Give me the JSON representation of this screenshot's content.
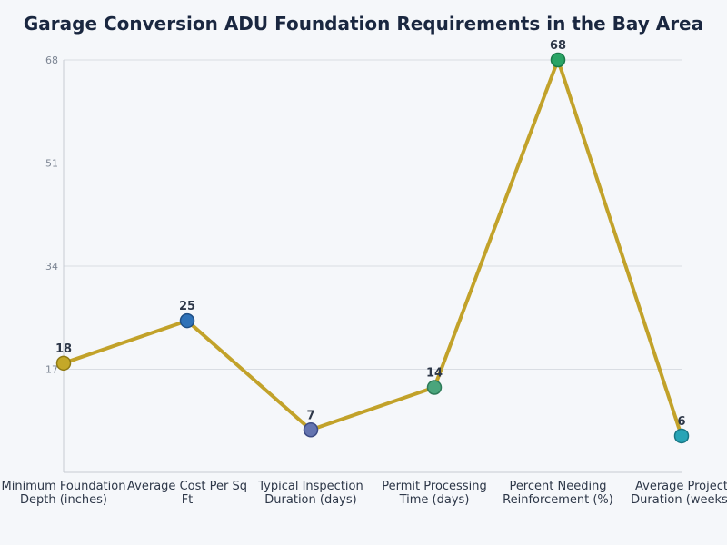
{
  "chart_data": {
    "type": "line",
    "title": "Garage Conversion ADU Foundation Requirements in the Bay Area",
    "categories": [
      [
        "Minimum Foundation",
        "Depth (inches)"
      ],
      [
        "Average Cost Per Sq",
        "Ft"
      ],
      [
        "Typical Inspection",
        "Duration (days)"
      ],
      [
        "Permit Processing",
        "Time (days)"
      ],
      [
        "Percent Needing",
        "Reinforcement (%)"
      ],
      [
        "Average Project",
        "Duration (weeks)"
      ]
    ],
    "values": [
      18,
      25,
      7,
      14,
      68,
      6
    ],
    "yticks": [
      17,
      34,
      51,
      68
    ],
    "ylim": [
      0,
      68
    ],
    "grid": true,
    "line_color": "#c2a22a",
    "point_colors": [
      "#c4a828",
      "#2f72b8",
      "#6474b0",
      "#4aa57c",
      "#2aa466",
      "#27a4b6"
    ],
    "point_stroke_colors": [
      "#8f7a14",
      "#1f4f86",
      "#3d4b85",
      "#2d7a58",
      "#1a7a4a",
      "#187684"
    ]
  }
}
